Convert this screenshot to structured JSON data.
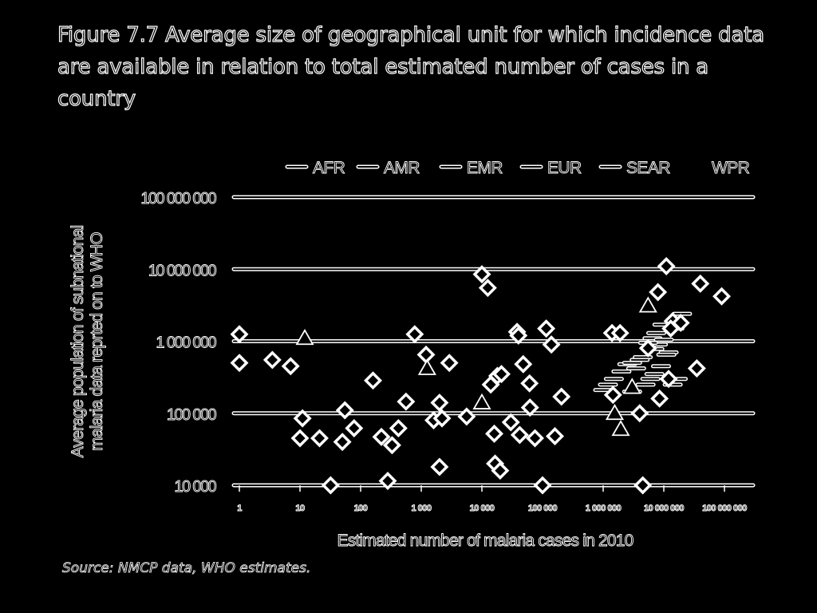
{
  "figure": {
    "title": "Figure 7.7 Average size of geographical unit for which incidence data are available in relation to total estimated number of cases in a country",
    "source": "Source: NMCP data, WHO estimates."
  },
  "chart_data": {
    "type": "scatter",
    "xlabel": "Estimated number of malaria cases in 2010",
    "ylabel": "Average population of subnational malaria data reprted on to WHO",
    "x_scale": "log",
    "y_scale": "log",
    "xlim": [
      1,
      100000000
    ],
    "ylim": [
      10000,
      100000000
    ],
    "x_ticks": [
      "1",
      "10",
      "100",
      "1 000",
      "10 000",
      "100 000",
      "1 000 000",
      "10 000 000",
      "100 000 000"
    ],
    "y_ticks": [
      "10 000",
      "100 000",
      "1 000 000",
      "10 000 000",
      "100 000 000"
    ],
    "grid": true,
    "legend_position": "top",
    "legend": [
      "AFR",
      "AMR",
      "EMR",
      "EUR",
      "SEAR",
      "WPR"
    ],
    "series": [
      {
        "name": "AFR",
        "marker": "line",
        "points": [
          [
            12000000,
            700000
          ],
          [
            8000000,
            900000
          ],
          [
            15000000,
            1500000
          ],
          [
            20000000,
            2400000
          ],
          [
            11000000,
            650000
          ],
          [
            9000000,
            450000
          ],
          [
            7000000,
            350000
          ],
          [
            6000000,
            300000
          ],
          [
            5000000,
            250000
          ],
          [
            3500000,
            420000
          ],
          [
            4000000,
            550000
          ],
          [
            2500000,
            480000
          ],
          [
            2000000,
            380000
          ],
          [
            1500000,
            300000
          ],
          [
            1200000,
            250000
          ],
          [
            1000000,
            210000
          ],
          [
            9500000,
            1700000
          ],
          [
            7500000,
            1300000
          ],
          [
            6500000,
            1100000
          ],
          [
            5500000,
            950000
          ],
          [
            14000000,
            250000
          ],
          [
            17000000,
            300000
          ],
          [
            3000000,
            200000
          ]
        ]
      },
      {
        "name": "AMR",
        "marker": "diamond",
        "points": [
          [
            1,
            1250000
          ],
          [
            1,
            500000
          ],
          [
            3.5,
            550000
          ],
          [
            7,
            450000
          ],
          [
            11,
            85000
          ],
          [
            10,
            45000
          ],
          [
            21,
            45000
          ],
          [
            55,
            110000
          ],
          [
            50,
            40000
          ],
          [
            78,
            62000
          ],
          [
            32,
            10000
          ],
          [
            160,
            285000
          ],
          [
            220,
            47000
          ],
          [
            280,
            11500
          ],
          [
            330,
            36000
          ],
          [
            420,
            62000
          ],
          [
            560,
            145000
          ],
          [
            780,
            1250000
          ],
          [
            1200,
            650000
          ],
          [
            1600,
            80000
          ],
          [
            2000,
            140000
          ],
          [
            2200,
            85000
          ],
          [
            2900,
            500000
          ],
          [
            2000,
            18000
          ],
          [
            5600,
            90000
          ],
          [
            14000,
            250000
          ]
        ]
      },
      {
        "name": "EMR",
        "marker": "diamond",
        "points": [
          [
            10000,
            8500000
          ],
          [
            12500,
            5500000
          ],
          [
            18000,
            330000
          ],
          [
            21000,
            350000
          ],
          [
            16000,
            52000
          ],
          [
            16500,
            20000
          ],
          [
            20000,
            16000
          ],
          [
            30000,
            75000
          ],
          [
            38000,
            1350000
          ],
          [
            40000,
            1200000
          ],
          [
            42000,
            50000
          ],
          [
            48000,
            480000
          ],
          [
            61000,
            260000
          ],
          [
            62000,
            120000
          ],
          [
            75000,
            45000
          ],
          [
            100000,
            10000
          ],
          [
            115000,
            1500000
          ],
          [
            140000,
            900000
          ],
          [
            160000,
            48000
          ],
          [
            205000,
            170000
          ]
        ]
      },
      {
        "name": "EUR",
        "marker": "triangle",
        "points": [
          [
            12,
            1100000
          ],
          [
            1250,
            420000
          ],
          [
            10000,
            140000
          ],
          [
            1550000,
            100000
          ],
          [
            1950000,
            60000
          ],
          [
            3000000,
            230000
          ],
          [
            5500000,
            3100000
          ]
        ]
      },
      {
        "name": "SEAR",
        "marker": "line",
        "points": [
          [
            10000000,
            1050000
          ],
          [
            7000000,
            780000
          ],
          [
            4500000,
            600000
          ],
          [
            3000000,
            500000
          ]
        ]
      },
      {
        "name": "WPR",
        "marker": "diamond",
        "points": [
          [
            1400000,
            1300000
          ],
          [
            1900000,
            1300000
          ],
          [
            1450000,
            180000
          ],
          [
            4000000,
            100000
          ],
          [
            4500000,
            10000
          ],
          [
            5500000,
            800000
          ],
          [
            8000000,
            4800000
          ],
          [
            11000000,
            11000000
          ],
          [
            8500000,
            160000
          ],
          [
            12000000,
            300000
          ],
          [
            14000000,
            1900000
          ],
          [
            19000000,
            1800000
          ],
          [
            40000000,
            6300000
          ],
          [
            35000000,
            420000
          ],
          [
            90000000,
            4200000
          ],
          [
            13000000,
            1500000
          ]
        ]
      }
    ]
  }
}
